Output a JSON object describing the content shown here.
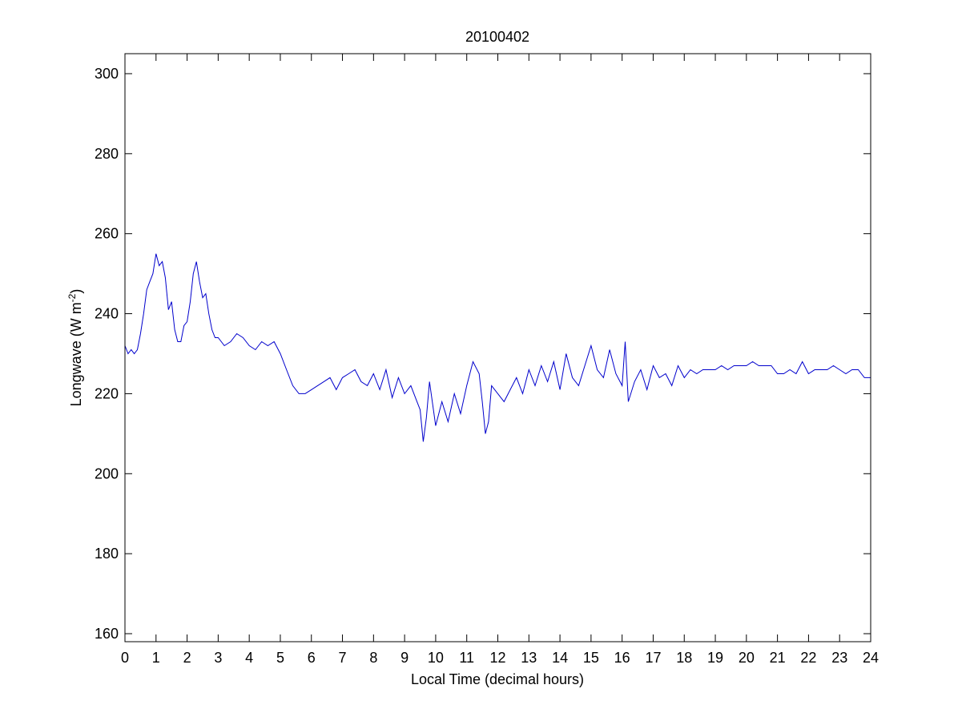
{
  "chart_data": {
    "type": "line",
    "title": "20100402",
    "xlabel": "Local Time (decimal hours)",
    "ylabel": "Longwave (W m^-2)",
    "ylabel_parts": {
      "main": "Longwave (W m",
      "sup": "-2",
      "close": ")"
    },
    "xlim": [
      0,
      24
    ],
    "ylim": [
      158,
      305
    ],
    "xticks": [
      0,
      1,
      2,
      3,
      4,
      5,
      6,
      7,
      8,
      9,
      10,
      11,
      12,
      13,
      14,
      15,
      16,
      17,
      18,
      19,
      20,
      21,
      22,
      23,
      24
    ],
    "xtick_labels": [
      "0",
      "1",
      "2",
      "3",
      "4",
      "5",
      "6",
      "7",
      "8",
      "9",
      "10",
      "11",
      "12",
      "13",
      "14",
      "15",
      "16",
      "17",
      "18",
      "19",
      "20",
      "21",
      "22",
      "23",
      "24"
    ],
    "yticks": [
      160,
      180,
      200,
      220,
      240,
      260,
      280,
      300
    ],
    "ytick_labels": [
      "160",
      "180",
      "200",
      "220",
      "240",
      "260",
      "280",
      "300"
    ],
    "grid": false,
    "color": "#0000cc",
    "series": [
      {
        "x": [
          0,
          0.1,
          0.2,
          0.3,
          0.4,
          0.5,
          0.6,
          0.7,
          0.8,
          0.9,
          1.0,
          1.1,
          1.2,
          1.3,
          1.4,
          1.5,
          1.6,
          1.7,
          1.8,
          1.9,
          2.0,
          2.1,
          2.2,
          2.3,
          2.4,
          2.5,
          2.6,
          2.7,
          2.8,
          2.9,
          3.0,
          3.2,
          3.4,
          3.6,
          3.8,
          4.0,
          4.2,
          4.4,
          4.6,
          4.8,
          5.0,
          5.2,
          5.4,
          5.6,
          5.8,
          6.0,
          6.2,
          6.4,
          6.6,
          6.8,
          7.0,
          7.2,
          7.4,
          7.6,
          7.8,
          8.0,
          8.2,
          8.4,
          8.6,
          8.8,
          9.0,
          9.2,
          9.4,
          9.5,
          9.6,
          9.7,
          9.8,
          10.0,
          10.2,
          10.4,
          10.6,
          10.8,
          11.0,
          11.2,
          11.4,
          11.5,
          11.6,
          11.7,
          11.8,
          12.0,
          12.2,
          12.4,
          12.6,
          12.8,
          13.0,
          13.2,
          13.4,
          13.6,
          13.8,
          14.0,
          14.2,
          14.4,
          14.6,
          14.8,
          15.0,
          15.2,
          15.4,
          15.6,
          15.8,
          16.0,
          16.1,
          16.2,
          16.4,
          16.6,
          16.8,
          17.0,
          17.2,
          17.4,
          17.6,
          17.8,
          18.0,
          18.2,
          18.4,
          18.6,
          18.8,
          19.0,
          19.2,
          19.4,
          19.6,
          19.8,
          20.0,
          20.2,
          20.4,
          20.6,
          20.8,
          21.0,
          21.2,
          21.4,
          21.6,
          21.8,
          22.0,
          22.2,
          22.4,
          22.6,
          22.8,
          23.0,
          23.2,
          23.4,
          23.6,
          23.8,
          24.0
        ],
        "y": [
          232,
          230,
          231,
          230,
          231,
          235,
          240,
          246,
          248,
          250,
          255,
          252,
          253,
          249,
          241,
          243,
          236,
          233,
          233,
          237,
          238,
          243,
          250,
          253,
          248,
          244,
          245,
          240,
          236,
          234,
          234,
          232,
          233,
          235,
          234,
          232,
          231,
          233,
          232,
          233,
          230,
          226,
          222,
          220,
          220,
          221,
          222,
          223,
          224,
          221,
          224,
          225,
          226,
          223,
          222,
          225,
          221,
          226,
          219,
          224,
          220,
          222,
          218,
          216,
          208,
          214,
          223,
          212,
          218,
          213,
          220,
          215,
          222,
          228,
          225,
          218,
          210,
          213,
          222,
          220,
          218,
          221,
          224,
          220,
          226,
          222,
          227,
          223,
          228,
          221,
          230,
          224,
          222,
          227,
          232,
          226,
          224,
          231,
          225,
          222,
          233,
          218,
          223,
          226,
          221,
          227,
          224,
          225,
          222,
          227,
          224,
          226,
          225,
          226,
          226,
          226,
          227,
          226,
          227,
          227,
          227,
          228,
          227,
          227,
          227,
          225,
          225,
          226,
          225,
          228,
          225,
          226,
          226,
          226,
          227,
          226,
          225,
          226,
          226,
          224,
          224
        ]
      }
    ]
  }
}
